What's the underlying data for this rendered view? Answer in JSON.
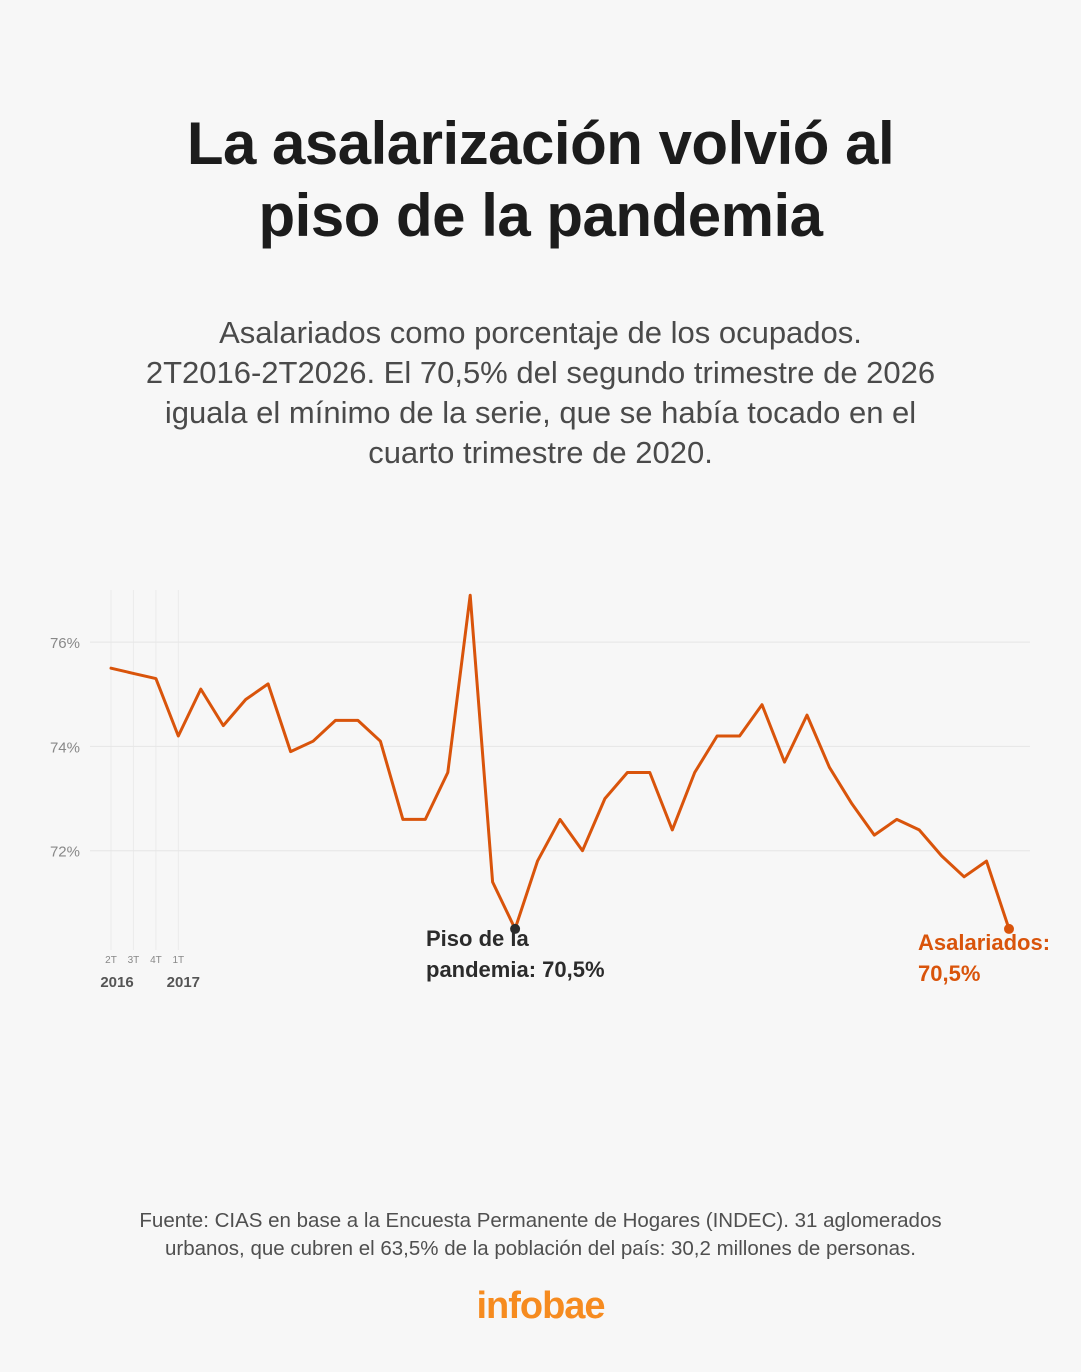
{
  "title_line1": "La asalarización volvió al",
  "title_line2": "piso de la pandemia",
  "subtitle_lines": [
    "Asalariados como porcentaje de los ocupados.",
    "2T2016-2T2026. El 70,5% del segundo trimestre de 2026",
    "iguala el mínimo de la serie, que se había tocado en el",
    "cuarto trimestre de 2020."
  ],
  "source_lines": [
    "Fuente: CIAS en base a la Encuesta Permanente de Hogares (INDEC). 31 aglomerados",
    "urbanos, que cubren el 63,5% de la población del país: 30,2 millones de personas."
  ],
  "logo": "infobae",
  "colors": {
    "line": "#d9540b",
    "annotation_dark": "#2b2b2b",
    "background": "#f7f7f7",
    "logo": "#f68b1f"
  },
  "chart_data": {
    "type": "line",
    "ylim": [
      70,
      77
    ],
    "y_ticks": [
      72,
      74,
      76
    ],
    "y_tick_labels": [
      "72%",
      "74%",
      "76%"
    ],
    "grid": true,
    "x_tick_labels": [
      "2T",
      "3T",
      "4T",
      "1T"
    ],
    "x_year_labels": [
      "2016",
      "2017"
    ],
    "series": [
      {
        "values": [
          75.5,
          75.4,
          75.3,
          74.2,
          75.1,
          74.4,
          74.9,
          75.2,
          73.9,
          74.1,
          74.5,
          74.5,
          74.1,
          72.6,
          72.6,
          73.5,
          76.9,
          71.4,
          70.5,
          71.8,
          72.6,
          72.0,
          73.0,
          73.5,
          73.5,
          72.4,
          73.5,
          74.2,
          74.2,
          74.8,
          73.7,
          74.6,
          73.6,
          72.9,
          72.3,
          72.6,
          72.4,
          71.9,
          71.5,
          71.8,
          70.5
        ]
      }
    ],
    "annotations": [
      {
        "index": 18,
        "line1": "Piso de la",
        "line2": "pandemia: 70,5%"
      },
      {
        "index": 40,
        "line1": "Asalariados:",
        "line2": "70,5%"
      }
    ]
  }
}
